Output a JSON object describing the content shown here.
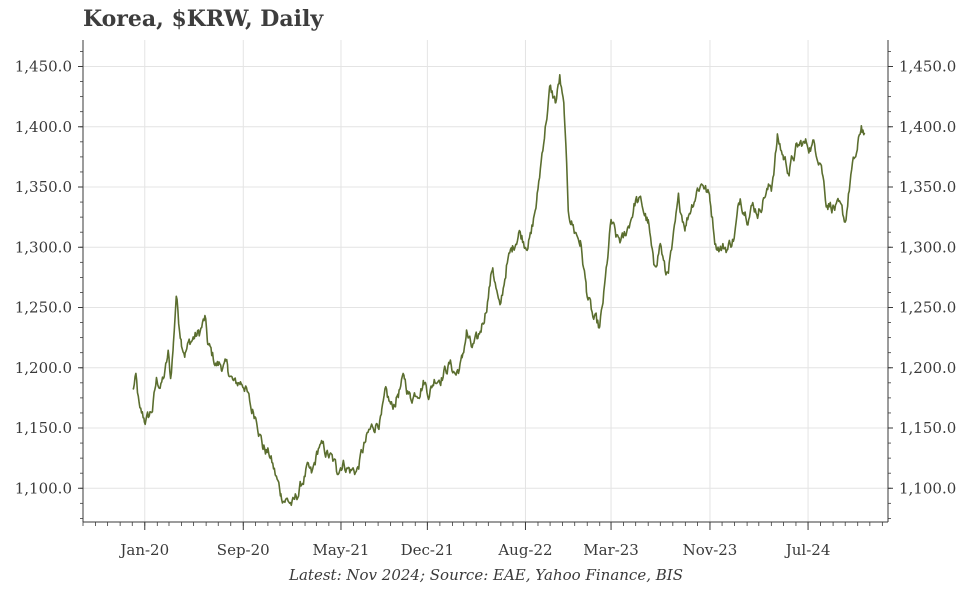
{
  "title": "Korea, $KRW, Daily",
  "source_note": "Latest: Nov 2024; Source: EAE, Yahoo Finance, BIS",
  "colors": {
    "line": "#5b6e2f",
    "grid": "#e4e4e4",
    "axis": "#3a3a3a"
  },
  "chart_data": {
    "type": "line",
    "title": "Korea, $KRW, Daily",
    "xlabel": "",
    "ylabel": "",
    "x_ticks": [
      "Jan-20",
      "Sep-20",
      "May-21",
      "Dec-21",
      "Aug-22",
      "Mar-23",
      "Nov-23",
      "Jul-24"
    ],
    "y_ticks": [
      "1,100.0",
      "1,150.0",
      "1,200.0",
      "1,250.0",
      "1,300.0",
      "1,350.0",
      "1,400.0",
      "1,450.0"
    ],
    "ylim": [
      1072,
      1472
    ],
    "xlim": [
      "2019-08-01",
      "2025-01-15"
    ],
    "grid": true,
    "series": [
      {
        "values": [
          [
            "2019-12-02",
            1181
          ],
          [
            "2019-12-10",
            1190
          ],
          [
            "2019-12-20",
            1160
          ],
          [
            "2019-12-31",
            1156
          ],
          [
            "2020-01-10",
            1158
          ],
          [
            "2020-01-20",
            1166
          ],
          [
            "2020-01-31",
            1190
          ],
          [
            "2020-02-10",
            1185
          ],
          [
            "2020-02-20",
            1195
          ],
          [
            "2020-02-28",
            1210
          ],
          [
            "2020-03-05",
            1190
          ],
          [
            "2020-03-12",
            1220
          ],
          [
            "2020-03-19",
            1262
          ],
          [
            "2020-03-25",
            1240
          ],
          [
            "2020-04-01",
            1225
          ],
          [
            "2020-04-10",
            1215
          ],
          [
            "2020-04-20",
            1220
          ],
          [
            "2020-05-01",
            1225
          ],
          [
            "2020-05-15",
            1228
          ],
          [
            "2020-05-29",
            1240
          ],
          [
            "2020-06-05",
            1218
          ],
          [
            "2020-06-15",
            1210
          ],
          [
            "2020-06-25",
            1203
          ],
          [
            "2020-07-10",
            1202
          ],
          [
            "2020-07-25",
            1198
          ],
          [
            "2020-08-10",
            1185
          ],
          [
            "2020-08-25",
            1188
          ],
          [
            "2020-09-05",
            1187
          ],
          [
            "2020-09-20",
            1165
          ],
          [
            "2020-10-05",
            1160
          ],
          [
            "2020-10-20",
            1135
          ],
          [
            "2020-11-05",
            1128
          ],
          [
            "2020-11-20",
            1110
          ],
          [
            "2020-12-03",
            1095
          ],
          [
            "2020-12-15",
            1092
          ],
          [
            "2021-01-04",
            1086
          ],
          [
            "2021-01-20",
            1100
          ],
          [
            "2021-02-05",
            1115
          ],
          [
            "2021-02-18",
            1108
          ],
          [
            "2021-03-08",
            1135
          ],
          [
            "2021-03-22",
            1130
          ],
          [
            "2021-04-05",
            1125
          ],
          [
            "2021-04-20",
            1115
          ],
          [
            "2021-05-05",
            1123
          ],
          [
            "2021-05-25",
            1115
          ],
          [
            "2021-06-10",
            1115
          ],
          [
            "2021-06-25",
            1132
          ],
          [
            "2021-07-10",
            1145
          ],
          [
            "2021-07-28",
            1155
          ],
          [
            "2021-08-10",
            1160
          ],
          [
            "2021-08-20",
            1175
          ],
          [
            "2021-09-05",
            1165
          ],
          [
            "2021-09-20",
            1180
          ],
          [
            "2021-10-05",
            1190
          ],
          [
            "2021-10-20",
            1175
          ],
          [
            "2021-11-05",
            1182
          ],
          [
            "2021-11-22",
            1190
          ],
          [
            "2021-12-06",
            1180
          ],
          [
            "2021-12-20",
            1192
          ],
          [
            "2022-01-05",
            1195
          ],
          [
            "2022-01-25",
            1203
          ],
          [
            "2022-02-10",
            1195
          ],
          [
            "2022-02-25",
            1205
          ],
          [
            "2022-03-08",
            1230
          ],
          [
            "2022-03-20",
            1215
          ],
          [
            "2022-04-05",
            1220
          ],
          [
            "2022-04-25",
            1250
          ],
          [
            "2022-05-12",
            1285
          ],
          [
            "2022-05-30",
            1245
          ],
          [
            "2022-06-15",
            1285
          ],
          [
            "2022-06-30",
            1298
          ],
          [
            "2022-07-15",
            1315
          ],
          [
            "2022-07-30",
            1305
          ],
          [
            "2022-08-15",
            1310
          ],
          [
            "2022-08-30",
            1340
          ],
          [
            "2022-09-15",
            1390
          ],
          [
            "2022-09-30",
            1430
          ],
          [
            "2022-10-15",
            1420
          ],
          [
            "2022-10-25",
            1440
          ],
          [
            "2022-11-05",
            1410
          ],
          [
            "2022-11-15",
            1330
          ],
          [
            "2022-11-30",
            1315
          ],
          [
            "2022-12-15",
            1305
          ],
          [
            "2022-12-30",
            1265
          ],
          [
            "2023-01-15",
            1240
          ],
          [
            "2023-02-01",
            1230
          ],
          [
            "2023-02-15",
            1270
          ],
          [
            "2023-03-01",
            1320
          ],
          [
            "2023-03-15",
            1305
          ],
          [
            "2023-04-01",
            1305
          ],
          [
            "2023-04-15",
            1320
          ],
          [
            "2023-05-01",
            1340
          ],
          [
            "2023-05-15",
            1335
          ],
          [
            "2023-06-01",
            1320
          ],
          [
            "2023-06-15",
            1280
          ],
          [
            "2023-07-01",
            1305
          ],
          [
            "2023-07-15",
            1275
          ],
          [
            "2023-08-01",
            1300
          ],
          [
            "2023-08-15",
            1335
          ],
          [
            "2023-09-01",
            1320
          ],
          [
            "2023-09-15",
            1335
          ],
          [
            "2023-10-01",
            1350
          ],
          [
            "2023-10-15",
            1355
          ],
          [
            "2023-11-01",
            1340
          ],
          [
            "2023-11-15",
            1305
          ],
          [
            "2023-12-01",
            1300
          ],
          [
            "2023-12-15",
            1300
          ],
          [
            "2024-01-01",
            1310
          ],
          [
            "2024-01-15",
            1340
          ],
          [
            "2024-02-01",
            1330
          ],
          [
            "2024-02-15",
            1335
          ],
          [
            "2024-03-01",
            1330
          ],
          [
            "2024-03-15",
            1345
          ],
          [
            "2024-04-01",
            1350
          ],
          [
            "2024-04-16",
            1390
          ],
          [
            "2024-05-01",
            1375
          ],
          [
            "2024-05-15",
            1365
          ],
          [
            "2024-06-01",
            1380
          ],
          [
            "2024-06-15",
            1385
          ],
          [
            "2024-07-01",
            1385
          ],
          [
            "2024-07-15",
            1385
          ],
          [
            "2024-08-01",
            1375
          ],
          [
            "2024-08-15",
            1340
          ],
          [
            "2024-09-01",
            1335
          ],
          [
            "2024-09-15",
            1330
          ],
          [
            "2024-10-01",
            1320
          ],
          [
            "2024-10-15",
            1360
          ],
          [
            "2024-11-01",
            1380
          ],
          [
            "2024-11-10",
            1400
          ],
          [
            "2024-11-18",
            1395
          ]
        ]
      }
    ]
  }
}
